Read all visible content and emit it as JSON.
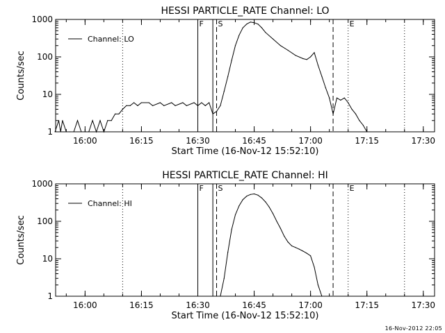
{
  "footer_timestamp": "16-Nov-2012 22:05",
  "chart_data": [
    {
      "type": "line",
      "title": "HESSI PARTICLE_RATE Channel: LO",
      "xlabel": "Start Time (16-Nov-12 15:52:10)",
      "ylabel": "Counts/sec",
      "y_scale": "log",
      "ylim": [
        1,
        1000
      ],
      "y_ticks": [
        "1",
        "10",
        "100",
        "1000"
      ],
      "xlim": [
        "15:52:10",
        "17:33:00"
      ],
      "x_ticks": [
        "16:00",
        "16:15",
        "16:30",
        "16:45",
        "17:00",
        "17:15",
        "17:30"
      ],
      "legend": {
        "position": "top-left",
        "entries": [
          "Channel: LO"
        ]
      },
      "markers": [
        {
          "time": "16:10",
          "style": "dotted",
          "label": ""
        },
        {
          "time": "16:30",
          "style": "solid",
          "label": "F"
        },
        {
          "time": "16:34",
          "style": "solid",
          "label": ""
        },
        {
          "time": "16:35",
          "style": "dashed",
          "label": "S"
        },
        {
          "time": "17:06",
          "style": "dashed",
          "label": ""
        },
        {
          "time": "17:10",
          "style": "dotted",
          "label": "E"
        },
        {
          "time": "17:25",
          "style": "dotted",
          "label": ""
        }
      ],
      "series": [
        {
          "x": [
            "15:52",
            "15:53",
            "15:53:30",
            "15:54",
            "15:55",
            "15:56",
            "15:57",
            "15:58",
            "15:59",
            "16:00",
            "16:01",
            "16:02",
            "16:03",
            "16:04",
            "16:05",
            "16:06",
            "16:07",
            "16:08",
            "16:09",
            "16:10",
            "16:11",
            "16:12",
            "16:13",
            "16:14",
            "16:15",
            "16:17",
            "16:18",
            "16:20",
            "16:21",
            "16:23",
            "16:24",
            "16:26",
            "16:27",
            "16:29",
            "16:30",
            "16:31",
            "16:32",
            "16:33",
            "16:34",
            "16:35",
            "16:36",
            "16:37",
            "16:38",
            "16:39",
            "16:40",
            "16:41",
            "16:42",
            "16:43",
            "16:44",
            "16:45",
            "16:46",
            "16:47",
            "16:48",
            "16:50",
            "16:52",
            "16:54",
            "16:56",
            "16:58",
            "16:59",
            "17:00",
            "17:01",
            "17:02",
            "17:03",
            "17:04",
            "17:05",
            "17:06",
            "17:07",
            "17:08",
            "17:09",
            "17:10",
            "17:11",
            "17:12",
            "17:13",
            "17:14",
            "17:15"
          ],
          "y": [
            1,
            2,
            1,
            2,
            1,
            1,
            1,
            2,
            1,
            1,
            1,
            2,
            1,
            2,
            1,
            2,
            2,
            3,
            3,
            4,
            5,
            5,
            6,
            5,
            6,
            6,
            5,
            6,
            5,
            6,
            5,
            6,
            5,
            6,
            5,
            6,
            5,
            6,
            3,
            3.5,
            5,
            12,
            30,
            80,
            200,
            380,
            600,
            750,
            850,
            820,
            750,
            600,
            450,
            300,
            200,
            150,
            110,
            90,
            85,
            100,
            130,
            60,
            30,
            15,
            8,
            3,
            8,
            7,
            8,
            6,
            4,
            3,
            2,
            1.5,
            1
          ]
        }
      ]
    },
    {
      "type": "line",
      "title": "HESSI PARTICLE_RATE Channel: HI",
      "xlabel": "Start Time (16-Nov-12 15:52:10)",
      "ylabel": "Counts/sec",
      "y_scale": "log",
      "ylim": [
        1,
        1000
      ],
      "y_ticks": [
        "1",
        "10",
        "100",
        "1000"
      ],
      "xlim": [
        "15:52:10",
        "17:33:00"
      ],
      "x_ticks": [
        "16:00",
        "16:15",
        "16:30",
        "16:45",
        "17:00",
        "17:15",
        "17:30"
      ],
      "legend": {
        "position": "top-left",
        "entries": [
          "Channel: HI"
        ]
      },
      "markers": [
        {
          "time": "16:10",
          "style": "dotted",
          "label": ""
        },
        {
          "time": "16:30",
          "style": "solid",
          "label": "F"
        },
        {
          "time": "16:34",
          "style": "solid",
          "label": ""
        },
        {
          "time": "16:35",
          "style": "dashed",
          "label": "S"
        },
        {
          "time": "17:06",
          "style": "dashed",
          "label": ""
        },
        {
          "time": "17:10",
          "style": "dotted",
          "label": "E"
        },
        {
          "time": "17:25",
          "style": "dotted",
          "label": ""
        }
      ],
      "series": [
        {
          "x": [
            "16:36",
            "16:37",
            "16:38",
            "16:39",
            "16:40",
            "16:41",
            "16:42",
            "16:43",
            "16:44",
            "16:45",
            "16:46",
            "16:47",
            "16:48",
            "16:49",
            "16:50",
            "16:51",
            "16:52",
            "16:53",
            "16:54",
            "16:55",
            "16:56",
            "16:57",
            "16:58",
            "16:59",
            "17:00",
            "17:01",
            "17:02",
            "17:03"
          ],
          "y": [
            1,
            3,
            15,
            60,
            150,
            260,
            380,
            470,
            520,
            540,
            500,
            420,
            330,
            240,
            160,
            100,
            65,
            40,
            28,
            22,
            20,
            18,
            16,
            14,
            12,
            6,
            2,
            1
          ]
        }
      ]
    }
  ]
}
